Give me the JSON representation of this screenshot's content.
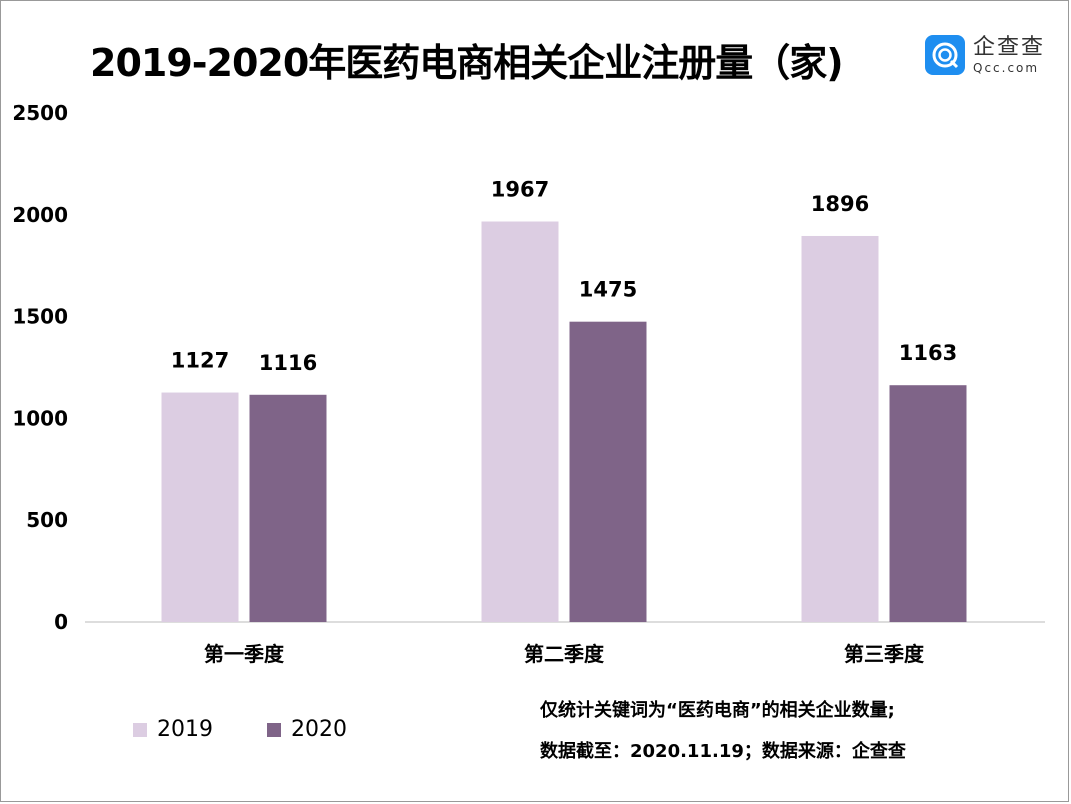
{
  "chart_data": {
    "type": "bar",
    "title": "2019-2020年医药电商相关企业注册量（家)",
    "categories": [
      "第一季度",
      "第二季度",
      "第三季度"
    ],
    "series": [
      {
        "name": "2019",
        "values": [
          1127,
          1967,
          1896
        ],
        "color": "#dccde2"
      },
      {
        "name": "2020",
        "values": [
          1116,
          1475,
          1163
        ],
        "color": "#7f6488"
      }
    ],
    "ylim": [
      0,
      2500
    ],
    "yticks": [
      0,
      500,
      1000,
      1500,
      2000,
      2500
    ],
    "grid": false,
    "legend": "bottom-left",
    "xlabel": "",
    "ylabel": ""
  },
  "logo": {
    "cn": "企查查",
    "en": "Qcc.com",
    "color": "#1e8ef0"
  },
  "notes": [
    "仅统计关键词为“医药电商”的相关企业数量;",
    "数据截至：2020.11.19；数据来源：企查查"
  ]
}
